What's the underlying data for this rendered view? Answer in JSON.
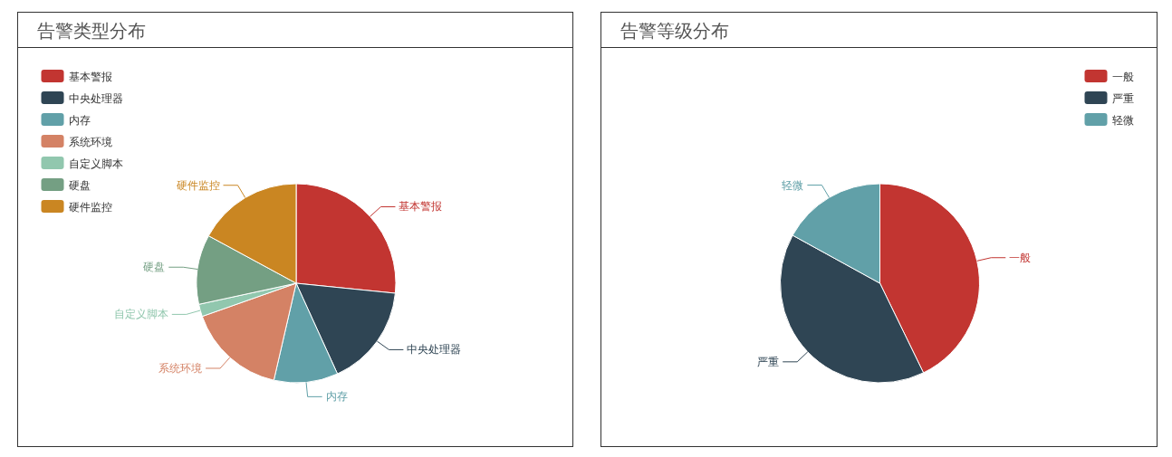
{
  "chart_data": [
    {
      "type": "pie",
      "title": "告警类型分布",
      "legend": "top left",
      "categories": [
        "基本警报",
        "中央处理器",
        "内存",
        "系统环境",
        "自定义脚本",
        "硬盘",
        "硬件监控"
      ],
      "values": [
        26.6,
        16.6,
        10.4,
        16,
        2,
        11.3,
        17.1
      ],
      "colors": [
        "#c23531",
        "#2f4554",
        "#61a0a8",
        "#d48265",
        "#91c7ae",
        "#749f83",
        "#ca8622"
      ]
    },
    {
      "type": "pie",
      "title": "告警等级分布",
      "legend": "top right",
      "categories": [
        "一般",
        "严重",
        "轻微"
      ],
      "values": [
        42.8,
        40.2,
        17
      ],
      "colors": [
        "#c23531",
        "#2f4554",
        "#61a0a8"
      ]
    }
  ]
}
